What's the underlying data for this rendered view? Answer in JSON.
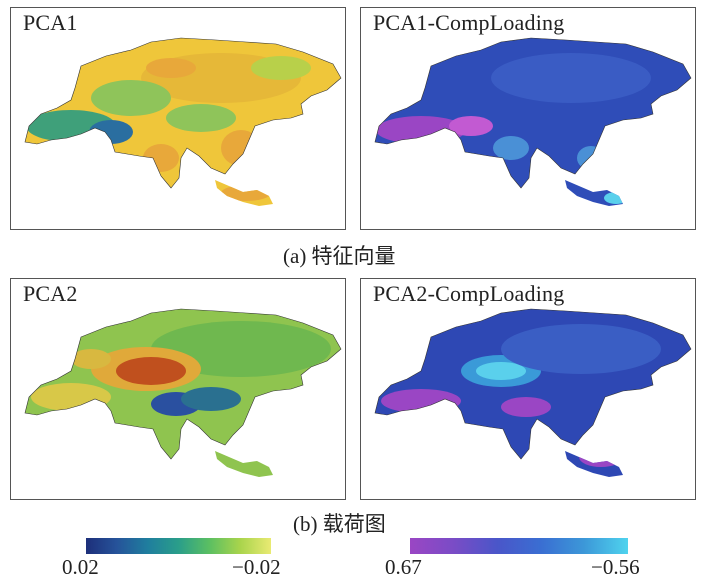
{
  "panels": [
    {
      "title": "PCA1",
      "palette": "viridis-like",
      "colors": [
        "#f0c43a",
        "#e8a83a",
        "#8fc45a",
        "#3fa07a",
        "#2a6ea0",
        "#2a4c9a"
      ]
    },
    {
      "title": "PCA1-CompLoading",
      "palette": "cool-purple",
      "colors": [
        "#2f4db8",
        "#3a62c8",
        "#4a90d6",
        "#9a46c4",
        "#c25ad2"
      ]
    },
    {
      "title": "PCA2",
      "palette": "viridis-like",
      "colors": [
        "#9ac845",
        "#6fb84f",
        "#e0a93a",
        "#c0501e",
        "#2a50a0",
        "#2a7090"
      ]
    },
    {
      "title": "PCA2-CompLoading",
      "palette": "cool-purple",
      "colors": [
        "#2e48b4",
        "#3a5ec4",
        "#5ad0ec",
        "#9a46c4",
        "#c25ad2"
      ]
    }
  ],
  "captions": {
    "a": "(a) 特征向量",
    "b": "(b) 载荷图"
  },
  "colorbars": [
    {
      "left_label": "0.02",
      "right_label": "−0.02",
      "colors": [
        "#1d2f7a",
        "#26539a",
        "#1f7e9e",
        "#2a9e8a",
        "#5bbf62",
        "#a9d44c",
        "#e9ea73"
      ]
    },
    {
      "left_label": "0.67",
      "right_label": "−0.56",
      "colors": [
        "#9a46c4",
        "#7a4cc6",
        "#4a56c9",
        "#3a6ed2",
        "#3c98d8",
        "#4fd3ee"
      ]
    }
  ]
}
